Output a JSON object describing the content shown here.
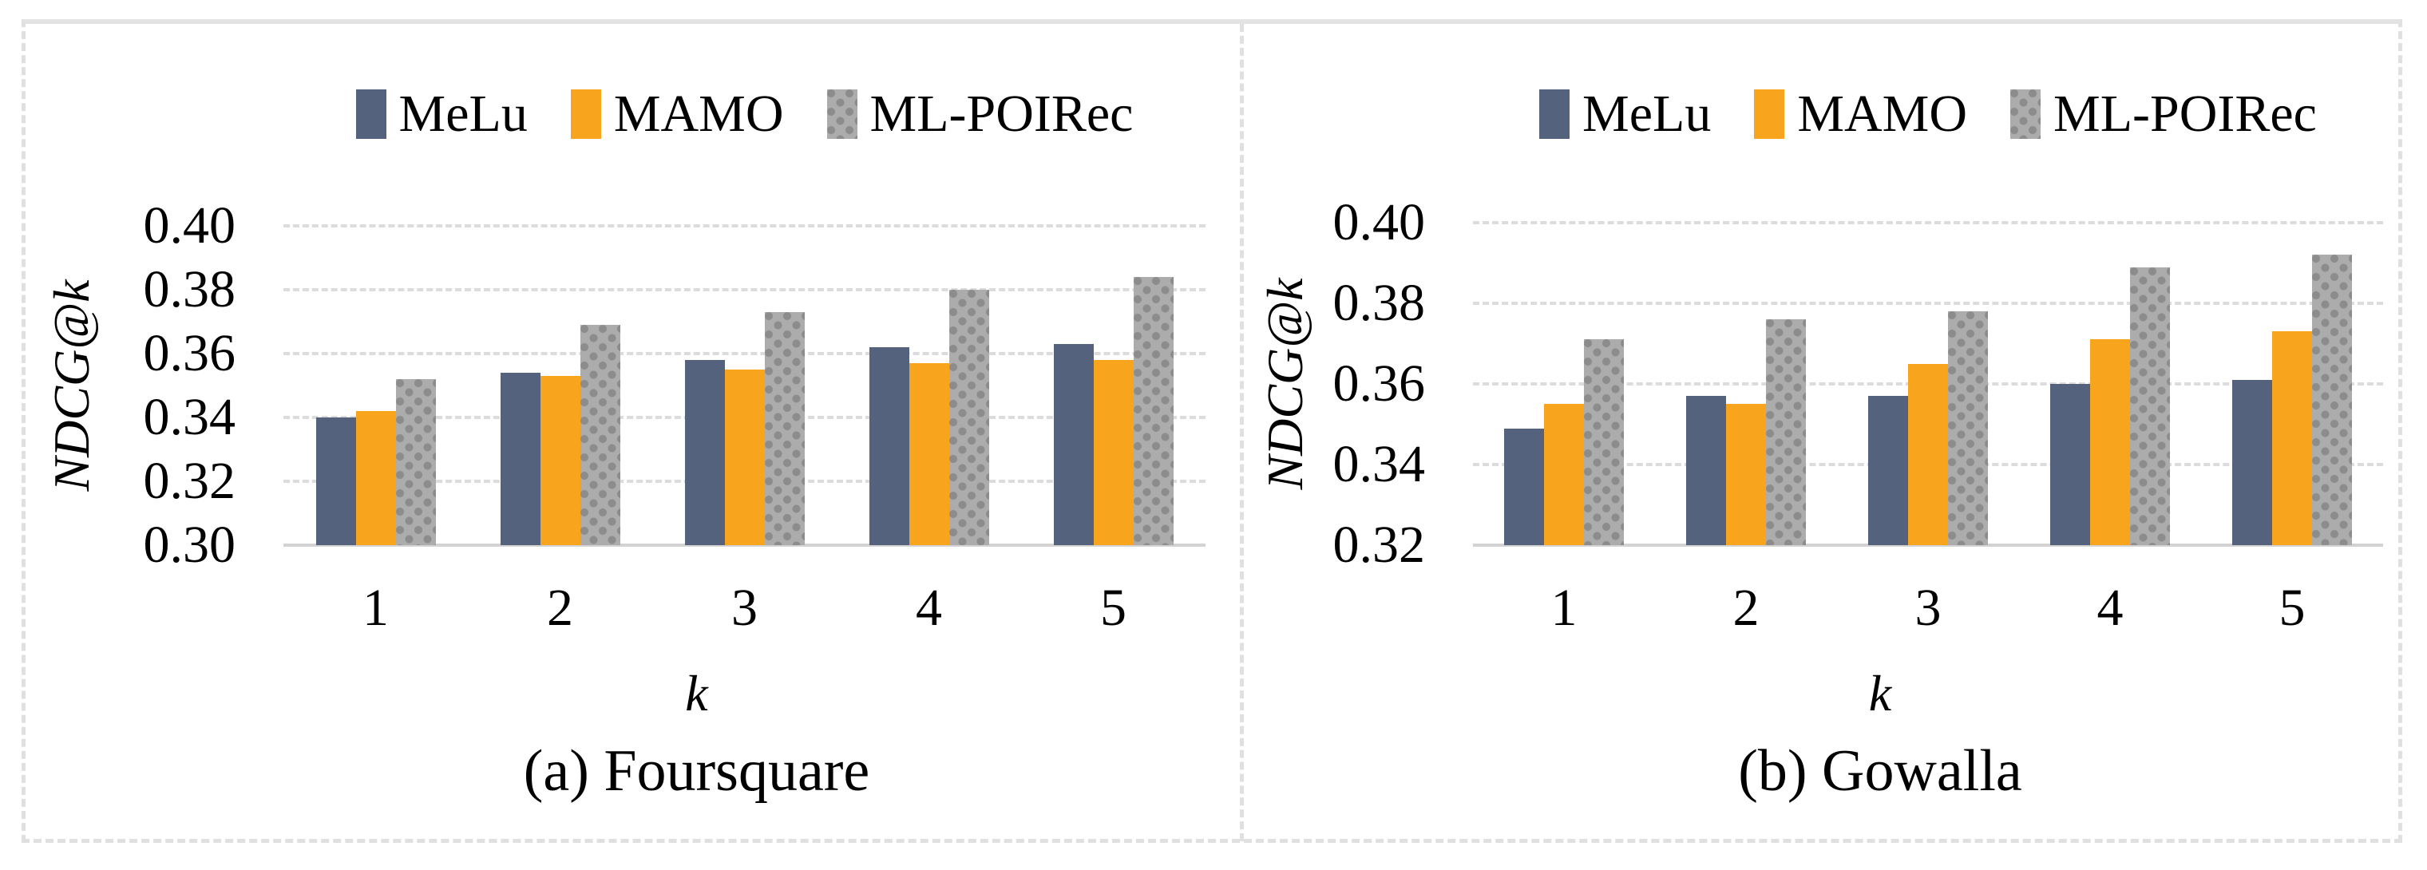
{
  "figure": {
    "background_color": "#FFFFFF",
    "border_color": "#E0E0E0",
    "gridline_color": "#DCDCDC",
    "axis_line_color": "#D3D3D3",
    "text_color": "#000000"
  },
  "chart_data": [
    {
      "type": "bar",
      "title": "(a) Foursquare",
      "xlabel": "k",
      "ylabel": "NDCG@k",
      "categories": [
        "1",
        "2",
        "3",
        "4",
        "5"
      ],
      "series": [
        {
          "name": "MeLu",
          "color": "#55627E",
          "pattern": "solid",
          "values": [
            0.34,
            0.354,
            0.358,
            0.362,
            0.363
          ]
        },
        {
          "name": "MAMO",
          "color": "#F8A41D",
          "pattern": "solid",
          "values": [
            0.342,
            0.353,
            0.355,
            0.357,
            0.358
          ]
        },
        {
          "name": "ML-POIRec",
          "color": "#ACACAC",
          "pattern": "dots",
          "values": [
            0.352,
            0.369,
            0.373,
            0.38,
            0.384
          ]
        }
      ],
      "ylim": [
        0.3,
        0.4
      ],
      "ytick_step": 0.02,
      "yticks": [
        "0.40",
        "0.38",
        "0.36",
        "0.34",
        "0.32",
        "0.30"
      ],
      "grid": true,
      "legend_position": "top"
    },
    {
      "type": "bar",
      "title": "(b) Gowalla",
      "xlabel": "k",
      "ylabel": "NDCG@k",
      "categories": [
        "1",
        "2",
        "3",
        "4",
        "5"
      ],
      "series": [
        {
          "name": "MeLu",
          "color": "#55627E",
          "pattern": "solid",
          "values": [
            0.349,
            0.357,
            0.357,
            0.36,
            0.361
          ]
        },
        {
          "name": "MAMO",
          "color": "#F8A41D",
          "pattern": "solid",
          "values": [
            0.355,
            0.355,
            0.365,
            0.371,
            0.373
          ]
        },
        {
          "name": "ML-POIRec",
          "color": "#ACACAC",
          "pattern": "dots",
          "values": [
            0.371,
            0.376,
            0.378,
            0.389,
            0.392
          ]
        }
      ],
      "ylim": [
        0.32,
        0.4
      ],
      "ytick_step": 0.02,
      "yticks": [
        "0.40",
        "0.38",
        "0.36",
        "0.34",
        "0.32"
      ],
      "grid": true,
      "legend_position": "top"
    }
  ]
}
